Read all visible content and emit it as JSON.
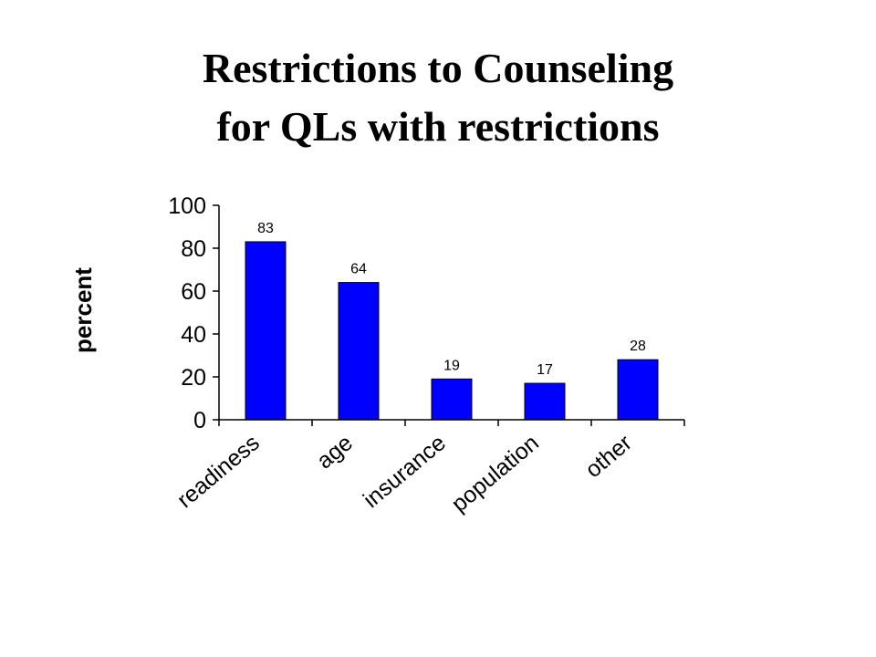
{
  "slide": {
    "title_line1": "Restrictions to Counseling",
    "title_line2": "for QLs with restrictions"
  },
  "chart_data": {
    "type": "bar",
    "title": "Restrictions to Counseling for QLs with restrictions",
    "categories": [
      "readiness",
      "age",
      "insurance",
      "population",
      "other"
    ],
    "values": [
      83,
      64,
      19,
      17,
      28
    ],
    "data_labels": [
      "83",
      "64",
      "19",
      "17",
      "28"
    ],
    "xlabel": "",
    "ylabel": "percent",
    "ylim": [
      0,
      100
    ],
    "yticks": [
      0,
      20,
      40,
      60,
      80,
      100
    ],
    "grid": false,
    "legend": "none",
    "bar_color": "#0000FF"
  }
}
